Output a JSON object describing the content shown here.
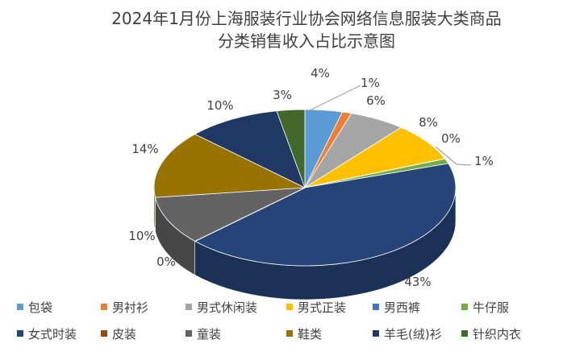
{
  "chart_data": {
    "type": "pie",
    "style": "3d-pie",
    "title": "2024年1月份上海服装行业协会网络信息服装大类商品",
    "subtitle": "分类销售收入占比示意图",
    "legend_position": "bottom",
    "categories": [
      "包袋",
      "男衬衫",
      "男式休闲装",
      "男式正装",
      "男西裤",
      "牛仔服",
      "女式时装",
      "皮装",
      "童装",
      "鞋类",
      "羊毛(绒)衫",
      "针织内衣"
    ],
    "values": [
      4,
      1,
      6,
      8,
      0,
      1,
      43,
      0,
      10,
      14,
      10,
      3
    ],
    "data_labels": [
      "4%",
      "1%",
      "6%",
      "8%",
      "0%",
      "1%",
      "43%",
      "0%",
      "10%",
      "14%",
      "10%",
      "3%"
    ],
    "colors": [
      "#5b9bd5",
      "#ed7d31",
      "#a5a5a5",
      "#ffc000",
      "#4472c4",
      "#70ad47",
      "#264478",
      "#9e480e",
      "#636363",
      "#997300",
      "#203864",
      "#43682b"
    ]
  }
}
